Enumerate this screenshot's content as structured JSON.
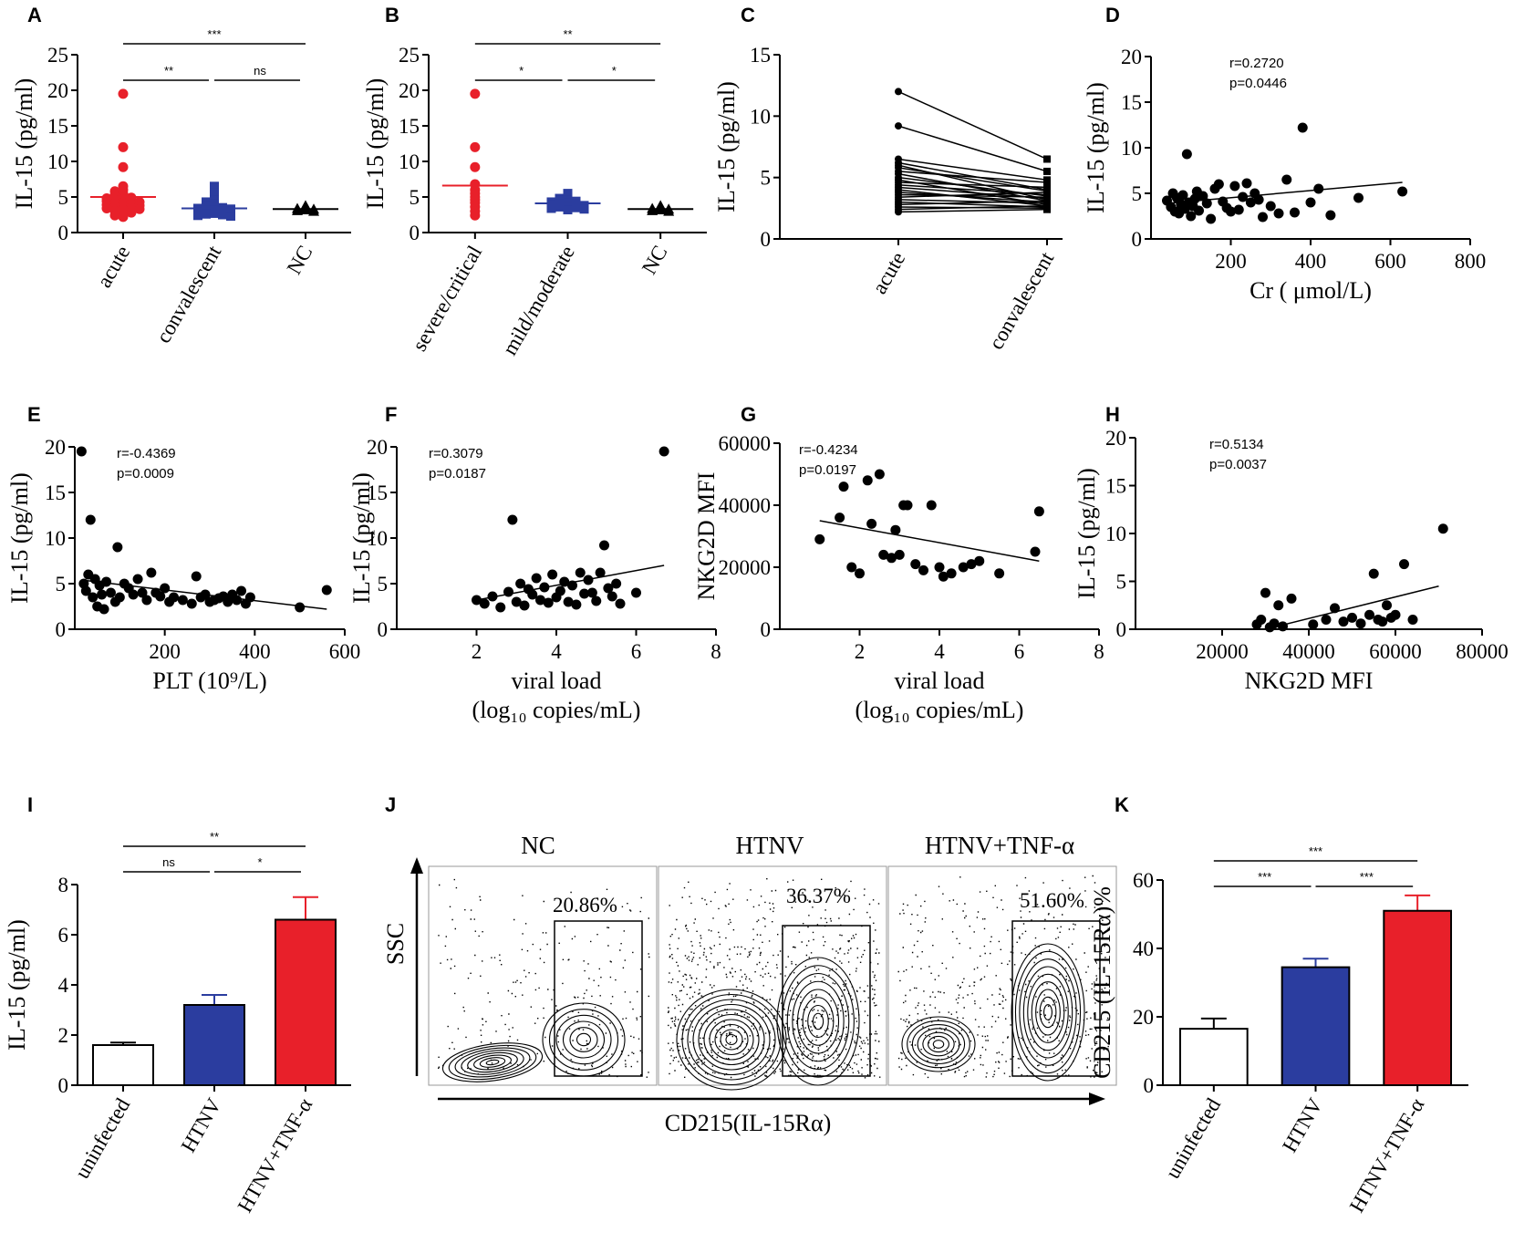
{
  "colors": {
    "red": "#e8202a",
    "blue": "#2b3d9f",
    "black": "#000000",
    "white": "#ffffff"
  },
  "chart_data": [
    {
      "id": "A",
      "type": "scatter",
      "panel_label": "A",
      "ylabel": "IL-15 (pg/ml)",
      "ylim": [
        0,
        25
      ],
      "yticks": [
        "0",
        "5",
        "10",
        "15",
        "20",
        "25"
      ],
      "categories": [
        "acute",
        "convalescent",
        "NC"
      ],
      "series": [
        {
          "name": "acute",
          "color": "#e8202a",
          "marker": "circle",
          "mean": 5.0,
          "values": [
            19.5,
            12.0,
            9.2,
            6.5,
            6.0,
            5.8,
            5.5,
            5.3,
            5.1,
            5.0,
            4.9,
            4.8,
            4.7,
            4.6,
            4.5,
            4.4,
            4.3,
            4.2,
            4.1,
            4.0,
            3.9,
            3.8,
            3.7,
            3.6,
            3.5,
            3.4,
            3.3,
            3.2,
            3.0,
            2.8,
            2.6,
            2.4,
            2.2
          ]
        },
        {
          "name": "convalescent",
          "color": "#2b3d9f",
          "marker": "square",
          "mean": 3.4,
          "values": [
            6.5,
            5.6,
            5.0,
            4.6,
            4.3,
            4.0,
            3.8,
            3.7,
            3.6,
            3.5,
            3.4,
            3.3,
            3.2,
            3.1,
            3.0,
            2.9,
            2.8,
            2.7,
            2.6,
            2.5,
            2.4,
            2.3
          ]
        },
        {
          "name": "NC",
          "color": "#000000",
          "marker": "triangle",
          "mean": 3.3,
          "values": [
            3.8,
            3.6,
            3.4,
            3.3,
            3.2,
            3.1,
            3.0
          ]
        }
      ],
      "significance": [
        {
          "from": 0,
          "to": 2,
          "label": "***"
        },
        {
          "from": 0,
          "to": 1,
          "label": "**"
        },
        {
          "from": 1,
          "to": 2,
          "label": "ns"
        }
      ]
    },
    {
      "id": "B",
      "type": "scatter",
      "panel_label": "B",
      "ylabel": "IL-15 (pg/ml)",
      "ylim": [
        0,
        25
      ],
      "yticks": [
        "0",
        "5",
        "10",
        "15",
        "20",
        "25"
      ],
      "categories": [
        "severe/critical",
        "mild/moderate",
        "NC"
      ],
      "series": [
        {
          "name": "severe/critical",
          "color": "#e8202a",
          "marker": "circle",
          "mean": 6.6,
          "values": [
            19.5,
            12.0,
            9.2,
            6.8,
            6.0,
            5.5,
            5.0,
            4.6,
            4.2,
            3.6,
            3.0,
            2.4
          ]
        },
        {
          "name": "mild/moderate",
          "color": "#2b3d9f",
          "marker": "square",
          "mean": 4.1,
          "values": [
            5.5,
            5.0,
            4.8,
            4.6,
            4.5,
            4.4,
            4.3,
            4.2,
            4.1,
            4.0,
            3.9,
            3.8,
            3.7,
            3.6,
            3.5,
            3.4,
            3.3,
            3.2
          ]
        },
        {
          "name": "NC",
          "color": "#000000",
          "marker": "triangle",
          "mean": 3.3,
          "values": [
            3.8,
            3.6,
            3.4,
            3.3,
            3.2,
            3.1,
            3.0
          ]
        }
      ],
      "significance": [
        {
          "from": 0,
          "to": 2,
          "label": "**"
        },
        {
          "from": 0,
          "to": 1,
          "label": "*"
        },
        {
          "from": 1,
          "to": 2,
          "label": "*"
        }
      ]
    },
    {
      "id": "C",
      "type": "line",
      "panel_label": "C",
      "ylabel": "IL-15 (pg/ml)",
      "ylim": [
        0,
        15
      ],
      "yticks": [
        "0",
        "5",
        "10",
        "15"
      ],
      "categories": [
        "acute",
        "convalescent"
      ],
      "pairs": [
        [
          12.0,
          6.5
        ],
        [
          9.2,
          5.5
        ],
        [
          6.5,
          4.8
        ],
        [
          6.2,
          4.0
        ],
        [
          6.0,
          3.2
        ],
        [
          5.8,
          3.9
        ],
        [
          5.5,
          4.6
        ],
        [
          5.3,
          3.1
        ],
        [
          5.0,
          3.5
        ],
        [
          4.8,
          2.8
        ],
        [
          4.6,
          4.2
        ],
        [
          4.4,
          3.6
        ],
        [
          4.2,
          3.3
        ],
        [
          4.0,
          2.7
        ],
        [
          3.8,
          3.0
        ],
        [
          3.6,
          3.4
        ],
        [
          3.4,
          3.8
        ],
        [
          3.2,
          2.9
        ],
        [
          3.0,
          2.6
        ],
        [
          2.8,
          3.1
        ],
        [
          2.6,
          2.5
        ],
        [
          2.4,
          2.7
        ],
        [
          2.2,
          2.4
        ]
      ]
    },
    {
      "id": "D",
      "type": "scatter",
      "panel_label": "D",
      "ylabel": "IL-15 (pg/ml)",
      "xlabel": "Cr ( μmol/L)",
      "xlim": [
        0,
        800
      ],
      "ylim": [
        0,
        20
      ],
      "xticks": [
        "200",
        "400",
        "600",
        "800"
      ],
      "yticks": [
        "0",
        "5",
        "10",
        "15",
        "20"
      ],
      "stats": [
        "r=0.2720",
        "p=0.0446"
      ],
      "x": [
        40,
        50,
        55,
        60,
        65,
        70,
        75,
        80,
        85,
        90,
        95,
        100,
        105,
        110,
        115,
        120,
        130,
        140,
        150,
        160,
        170,
        180,
        190,
        200,
        210,
        220,
        230,
        240,
        250,
        260,
        270,
        280,
        300,
        320,
        340,
        360,
        380,
        400,
        420,
        450,
        520,
        630
      ],
      "y": [
        4.2,
        3.5,
        5.0,
        3.0,
        4.5,
        2.8,
        3.8,
        4.8,
        3.3,
        9.3,
        4.0,
        2.5,
        3.6,
        4.4,
        5.2,
        3.1,
        4.7,
        3.9,
        2.2,
        5.5,
        6.0,
        4.1,
        3.4,
        3.0,
        5.8,
        3.2,
        4.6,
        6.1,
        4.0,
        5.0,
        4.3,
        2.4,
        3.6,
        2.8,
        6.5,
        2.9,
        12.2,
        4.0,
        5.5,
        2.6,
        4.5,
        5.2
      ],
      "fit": [
        [
          40,
          3.9
        ],
        [
          630,
          6.2
        ]
      ]
    },
    {
      "id": "E",
      "type": "scatter",
      "panel_label": "E",
      "ylabel": "IL-15 (pg/ml)",
      "xlabel": "PLT (10⁹/L)",
      "xlim": [
        0,
        600
      ],
      "ylim": [
        0,
        20
      ],
      "xticks": [
        "200",
        "400",
        "600"
      ],
      "yticks": [
        "0",
        "5",
        "10",
        "15",
        "20"
      ],
      "stats": [
        "r=-0.4369",
        "p=0.0009"
      ],
      "x": [
        15,
        20,
        25,
        30,
        35,
        40,
        45,
        50,
        55,
        60,
        65,
        70,
        80,
        90,
        95,
        100,
        110,
        120,
        130,
        140,
        150,
        160,
        170,
        180,
        190,
        200,
        210,
        220,
        240,
        260,
        270,
        280,
        290,
        300,
        310,
        320,
        330,
        340,
        350,
        360,
        370,
        380,
        390,
        500,
        560
      ],
      "y": [
        19.5,
        5.0,
        4.2,
        6.0,
        12.0,
        3.5,
        5.5,
        2.5,
        4.8,
        3.8,
        2.2,
        5.2,
        4.0,
        3.0,
        9.0,
        3.5,
        5.0,
        4.5,
        3.8,
        5.5,
        4.0,
        3.2,
        6.2,
        4.0,
        3.6,
        4.5,
        3.0,
        3.5,
        3.2,
        2.8,
        5.8,
        3.5,
        3.8,
        3.0,
        3.2,
        3.4,
        3.6,
        3.0,
        3.8,
        3.2,
        4.2,
        2.8,
        3.5,
        2.4,
        4.3
      ],
      "fit": [
        [
          15,
          5.4
        ],
        [
          560,
          2.2
        ]
      ]
    },
    {
      "id": "F",
      "type": "scatter",
      "panel_label": "F",
      "ylabel": "IL-15 (pg/ml)",
      "xlabel": "viral load",
      "xlabel2": "(log₁₀ copies/mL)",
      "xlim": [
        0,
        8
      ],
      "ylim": [
        0,
        20
      ],
      "xticks": [
        "2",
        "4",
        "6",
        "8"
      ],
      "yticks": [
        "0",
        "5",
        "10",
        "15",
        "20"
      ],
      "stats": [
        "r=0.3079",
        "p=0.0187"
      ],
      "x": [
        2.0,
        2.2,
        2.4,
        2.6,
        2.8,
        2.9,
        3.0,
        3.1,
        3.2,
        3.3,
        3.4,
        3.5,
        3.6,
        3.7,
        3.8,
        3.9,
        4.0,
        4.1,
        4.2,
        4.3,
        4.4,
        4.5,
        4.6,
        4.7,
        4.8,
        4.9,
        5.0,
        5.1,
        5.2,
        5.3,
        5.4,
        5.5,
        5.6,
        6.0,
        6.7
      ],
      "y": [
        3.2,
        2.8,
        3.6,
        2.4,
        4.1,
        12.0,
        3.0,
        5.0,
        2.6,
        4.4,
        3.8,
        5.6,
        3.2,
        4.6,
        2.9,
        6.0,
        3.5,
        4.2,
        5.2,
        3.0,
        4.8,
        2.7,
        6.2,
        3.9,
        5.4,
        4.0,
        3.1,
        6.2,
        9.2,
        4.5,
        3.6,
        5.0,
        2.8,
        4.0,
        19.5
      ],
      "fit": [
        [
          2.0,
          3.2
        ],
        [
          6.7,
          7.0
        ]
      ]
    },
    {
      "id": "G",
      "type": "scatter",
      "panel_label": "G",
      "ylabel": "NKG2D MFI",
      "xlabel": "viral load",
      "xlabel2": "(log₁₀ copies/mL)",
      "xlim": [
        0,
        8
      ],
      "ylim": [
        0,
        60000
      ],
      "xticks": [
        "2",
        "4",
        "6",
        "8"
      ],
      "yticks": [
        "0",
        "20000",
        "40000",
        "60000"
      ],
      "stats": [
        "r=-0.4234",
        "p=0.0197"
      ],
      "x": [
        1.0,
        1.5,
        1.6,
        1.8,
        2.0,
        2.2,
        2.3,
        2.5,
        2.6,
        2.8,
        2.9,
        3.0,
        3.1,
        3.2,
        3.4,
        3.6,
        3.8,
        4.0,
        4.1,
        4.3,
        4.6,
        4.8,
        5.0,
        5.5,
        6.4,
        6.5
      ],
      "y": [
        29000,
        36000,
        46000,
        20000,
        18000,
        48000,
        34000,
        50000,
        24000,
        23000,
        32000,
        24000,
        40000,
        40000,
        21000,
        19000,
        40000,
        20000,
        17000,
        18000,
        20000,
        21000,
        22000,
        18000,
        25000,
        38000
      ],
      "fit": [
        [
          1.0,
          35000
        ],
        [
          6.5,
          22000
        ]
      ]
    },
    {
      "id": "H",
      "type": "scatter",
      "panel_label": "H",
      "ylabel": "IL-15 (pg/ml)",
      "xlabel": "NKG2D MFI",
      "xlim": [
        0,
        80000
      ],
      "ylim": [
        0,
        20
      ],
      "xticks": [
        "20000",
        "40000",
        "60000",
        "80000"
      ],
      "yticks": [
        "0",
        "5",
        "10",
        "15",
        "20"
      ],
      "stats": [
        "r=0.5134",
        "p=0.0037"
      ],
      "x": [
        28000,
        29000,
        30000,
        31000,
        32000,
        33000,
        34000,
        36000,
        41000,
        44000,
        46000,
        48000,
        50000,
        52000,
        54000,
        55000,
        56000,
        57000,
        58000,
        59000,
        60000,
        62000,
        64000,
        71000
      ],
      "y": [
        0.5,
        1.0,
        3.8,
        0.2,
        0.6,
        2.5,
        0.3,
        3.2,
        0.5,
        1.0,
        2.2,
        0.8,
        1.2,
        0.6,
        1.5,
        5.8,
        1.0,
        0.8,
        2.5,
        1.2,
        1.5,
        6.8,
        1.0,
        10.5
      ],
      "fit": [
        [
          30000,
          0.0
        ],
        [
          70000,
          4.5
        ]
      ]
    },
    {
      "id": "I",
      "type": "bar",
      "panel_label": "I",
      "ylabel": "IL-15 (pg/ml)",
      "ylim": [
        0,
        8
      ],
      "yticks": [
        "0",
        "2",
        "4",
        "6",
        "8"
      ],
      "categories": [
        "uninfected",
        "HTNV",
        "HTNV+TNF-α"
      ],
      "values": [
        1.6,
        3.2,
        6.6
      ],
      "errors": [
        0.1,
        0.4,
        0.9
      ],
      "fills": [
        "#ffffff",
        "#2b3d9f",
        "#e8202a"
      ],
      "significance": [
        {
          "from": 0,
          "to": 2,
          "label": "**"
        },
        {
          "from": 0,
          "to": 1,
          "label": "ns"
        },
        {
          "from": 1,
          "to": 2,
          "label": "*"
        }
      ]
    },
    {
      "id": "K",
      "type": "bar",
      "panel_label": "K",
      "ylabel": "CD215 (IL-15Rα)%",
      "ylim": [
        0,
        60
      ],
      "yticks": [
        "0",
        "20",
        "40",
        "60"
      ],
      "categories": [
        "uninfected",
        "HTNV",
        "HTNV+TNF-α"
      ],
      "values": [
        16.5,
        34.5,
        51.0
      ],
      "errors": [
        3.0,
        2.5,
        4.5
      ],
      "fills": [
        "#ffffff",
        "#2b3d9f",
        "#e8202a"
      ],
      "significance": [
        {
          "from": 0,
          "to": 2,
          "label": "***"
        },
        {
          "from": 0,
          "to": 1,
          "label": "***"
        },
        {
          "from": 1,
          "to": 2,
          "label": "***"
        }
      ]
    }
  ],
  "flow": {
    "panel_label": "J",
    "ylabel": "SSC",
    "xlabel": "CD215(IL-15Rα)",
    "panels": [
      {
        "title": "NC",
        "percent": "20.86%"
      },
      {
        "title": "HTNV",
        "percent": "36.37%"
      },
      {
        "title": "HTNV+TNF-α",
        "percent": "51.60%"
      }
    ]
  }
}
